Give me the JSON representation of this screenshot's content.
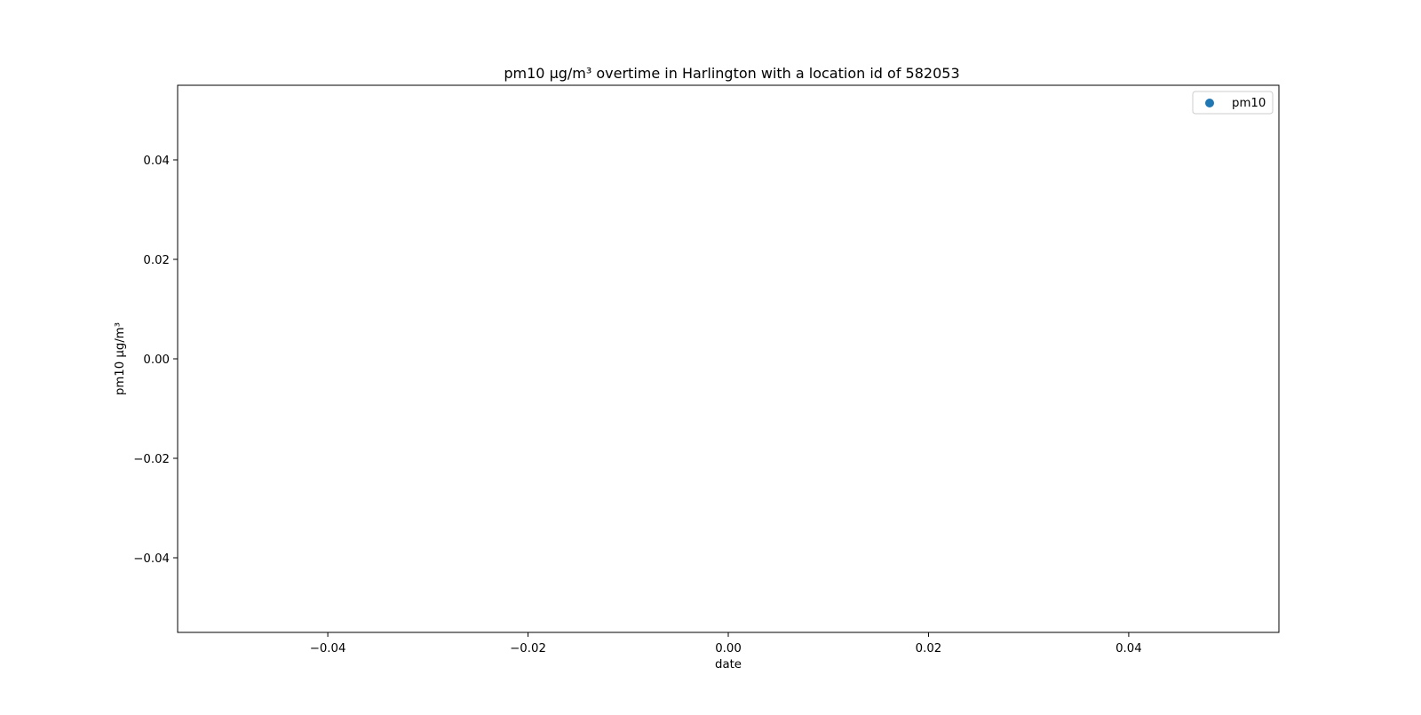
{
  "chart_data": {
    "type": "scatter",
    "title": "pm10 µg/m³ overtime in Harlington with a location id of 582053",
    "xlabel": "date",
    "ylabel": "pm10 µg/m³",
    "xlim": [
      -0.055,
      0.055
    ],
    "ylim": [
      -0.055,
      0.055
    ],
    "x_ticks": [
      -0.04,
      -0.02,
      0.0,
      0.02,
      0.04
    ],
    "x_tick_labels": [
      "−0.04",
      "−0.02",
      "0.00",
      "0.02",
      "0.04"
    ],
    "y_ticks": [
      0.04,
      0.02,
      0.0,
      -0.02,
      -0.04
    ],
    "y_tick_labels": [
      "0.04",
      "0.02",
      "0.00",
      "−0.02",
      "−0.04"
    ],
    "grid": false,
    "legend_position": "top-right",
    "series": [
      {
        "name": "pm10",
        "color": "#1f77b4",
        "x": [],
        "y": []
      }
    ]
  }
}
